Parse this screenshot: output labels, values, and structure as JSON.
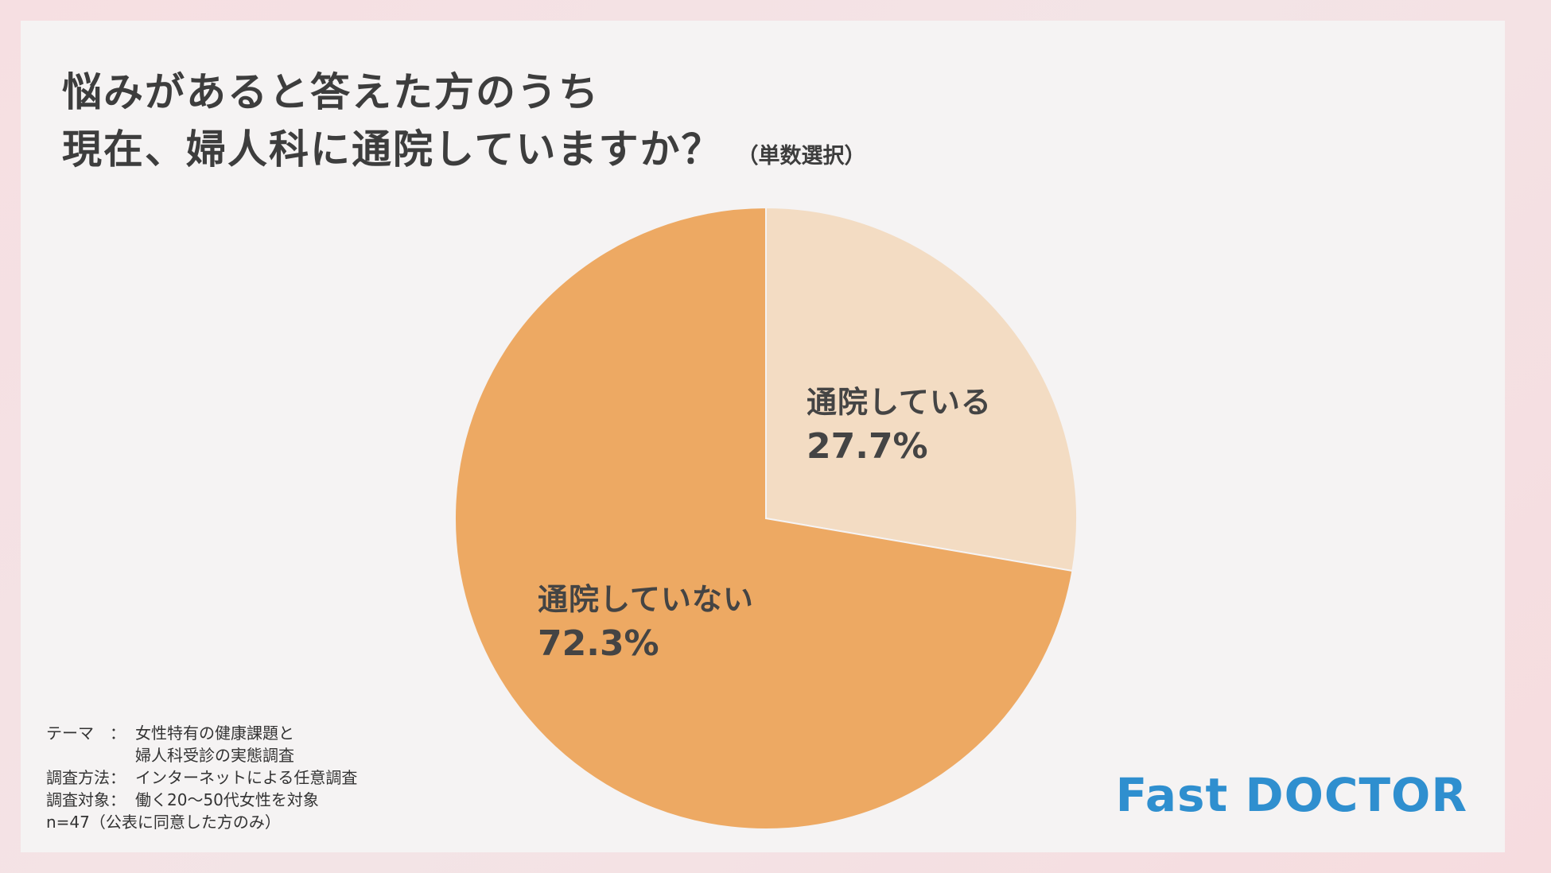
{
  "title": {
    "line1": "悩みがあると答えた方のうち",
    "line2": "現在、婦人科に通院していますか？",
    "note": "（単数選択）"
  },
  "chart_data": {
    "type": "pie",
    "slices": [
      {
        "label": "通院している",
        "value": 27.7,
        "display": "27.7%",
        "color": "#f3dcc3"
      },
      {
        "label": "通院していない",
        "value": 72.3,
        "display": "72.3%",
        "color": "#eda963"
      }
    ]
  },
  "footer": {
    "theme_label": "テーマ　：",
    "theme_value_1": "女性特有の健康課題と",
    "theme_value_2": "婦人科受診の実態調査",
    "method_label": "調査方法：",
    "method_value": "インターネットによる任意調査",
    "target_label": "調査対象：",
    "target_value": "働く20〜50代女性を対象",
    "n_text": "n=47（公表に同意した方のみ）"
  },
  "logo": "Fast DOCTOR"
}
